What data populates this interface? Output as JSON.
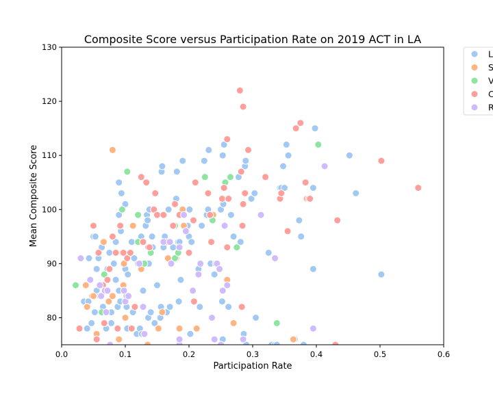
{
  "chart_data": {
    "type": "scatter",
    "title": "Composite Score versus Participation Rate on 2019 ACT in LA",
    "xlabel": "Participation Rate",
    "ylabel": "Mean Composite Score",
    "xlim": [
      0.0,
      0.6
    ],
    "ylim": [
      75,
      130
    ],
    "xticks": [
      "0.0",
      "0.1",
      "0.2",
      "0.3",
      "0.4",
      "0.5",
      "0.6"
    ],
    "yticks": [
      "80",
      "90",
      "100",
      "110",
      "120",
      "130"
    ],
    "grid": false,
    "legend_position": "outside-right",
    "legend_labels_visible": [
      "L",
      "S",
      "V",
      "C",
      "R"
    ],
    "series": [
      {
        "name": "L",
        "color": "#a1c9f4",
        "points": [
          [
            0.035,
            83
          ],
          [
            0.04,
            78
          ],
          [
            0.042,
            83
          ],
          [
            0.043,
            91
          ],
          [
            0.047,
            79
          ],
          [
            0.05,
            95
          ],
          [
            0.052,
            81
          ],
          [
            0.053,
            95
          ],
          [
            0.055,
            89
          ],
          [
            0.055,
            85
          ],
          [
            0.058,
            91
          ],
          [
            0.06,
            84
          ],
          [
            0.063,
            93
          ],
          [
            0.065,
            82
          ],
          [
            0.068,
            85
          ],
          [
            0.07,
            78
          ],
          [
            0.072,
            89
          ],
          [
            0.075,
            92
          ],
          [
            0.078,
            81
          ],
          [
            0.078,
            79
          ],
          [
            0.082,
            90
          ],
          [
            0.085,
            87
          ],
          [
            0.085,
            94
          ],
          [
            0.088,
            82
          ],
          [
            0.09,
            85
          ],
          [
            0.09,
            99
          ],
          [
            0.09,
            105
          ],
          [
            0.092,
            83
          ],
          [
            0.093,
            96
          ],
          [
            0.094,
            103
          ],
          [
            0.096,
            100
          ],
          [
            0.098,
            90
          ],
          [
            0.1,
            101
          ],
          [
            0.1,
            89
          ],
          [
            0.102,
            84
          ],
          [
            0.102,
            82
          ],
          [
            0.103,
            78
          ],
          [
            0.104,
            88
          ],
          [
            0.11,
            94
          ],
          [
            0.112,
            81
          ],
          [
            0.114,
            91
          ],
          [
            0.118,
            77
          ],
          [
            0.12,
            90
          ],
          [
            0.123,
            78
          ],
          [
            0.125,
            95
          ],
          [
            0.126,
            77
          ],
          [
            0.128,
            85
          ],
          [
            0.13,
            90
          ],
          [
            0.132,
            97
          ],
          [
            0.134,
            99
          ],
          [
            0.135,
            98
          ],
          [
            0.136,
            80
          ],
          [
            0.137,
            90
          ],
          [
            0.138,
            100
          ],
          [
            0.14,
            81
          ],
          [
            0.142,
            95
          ],
          [
            0.143,
            93
          ],
          [
            0.146,
            79
          ],
          [
            0.15,
            86
          ],
          [
            0.152,
            99
          ],
          [
            0.155,
            80
          ],
          [
            0.156,
            82
          ],
          [
            0.157,
            107
          ],
          [
            0.158,
            108
          ],
          [
            0.16,
            93
          ],
          [
            0.162,
            95
          ],
          [
            0.165,
            81
          ],
          [
            0.168,
            100
          ],
          [
            0.17,
            82
          ],
          [
            0.175,
            93
          ],
          [
            0.178,
            101
          ],
          [
            0.18,
            102
          ],
          [
            0.181,
            107
          ],
          [
            0.183,
            94
          ],
          [
            0.184,
            83
          ],
          [
            0.185,
            94
          ],
          [
            0.187,
            87
          ],
          [
            0.19,
            109
          ],
          [
            0.193,
            99
          ],
          [
            0.198,
            97
          ],
          [
            0.2,
            95
          ],
          [
            0.201,
            100
          ],
          [
            0.202,
            77
          ],
          [
            0.204,
            94
          ],
          [
            0.208,
            98
          ],
          [
            0.215,
            89
          ],
          [
            0.217,
            82
          ],
          [
            0.22,
            97
          ],
          [
            0.224,
            109
          ],
          [
            0.228,
            99
          ],
          [
            0.23,
            100
          ],
          [
            0.231,
            111
          ],
          [
            0.234,
            90
          ],
          [
            0.236,
            99
          ],
          [
            0.24,
            88
          ],
          [
            0.242,
            90
          ],
          [
            0.245,
            90
          ],
          [
            0.25,
            100
          ],
          [
            0.252,
            83
          ],
          [
            0.253,
            76
          ],
          [
            0.253,
            110
          ],
          [
            0.254,
            101
          ],
          [
            0.255,
            112
          ],
          [
            0.262,
            82
          ],
          [
            0.266,
            99
          ],
          [
            0.27,
            95
          ],
          [
            0.275,
            93
          ],
          [
            0.278,
            106
          ],
          [
            0.281,
            94
          ],
          [
            0.286,
            77
          ],
          [
            0.288,
            108
          ],
          [
            0.289,
            109
          ],
          [
            0.29,
            75
          ],
          [
            0.298,
            102
          ],
          [
            0.303,
            103
          ],
          [
            0.305,
            80
          ],
          [
            0.325,
            92
          ],
          [
            0.33,
            75
          ],
          [
            0.335,
            75
          ],
          [
            0.338,
            75
          ],
          [
            0.343,
            104
          ],
          [
            0.345,
            104
          ],
          [
            0.348,
            108
          ],
          [
            0.35,
            104
          ],
          [
            0.353,
            112
          ],
          [
            0.356,
            110
          ],
          [
            0.366,
            76
          ],
          [
            0.373,
            98
          ],
          [
            0.376,
            95
          ],
          [
            0.38,
            75
          ],
          [
            0.395,
            104
          ],
          [
            0.395,
            89
          ],
          [
            0.398,
            115
          ],
          [
            0.452,
            110
          ],
          [
            0.462,
            103
          ],
          [
            0.502,
            88
          ]
        ]
      },
      {
        "name": "S",
        "color": "#ffb482",
        "points": [
          [
            0.038,
            86
          ],
          [
            0.04,
            82
          ],
          [
            0.048,
            84
          ],
          [
            0.05,
            84
          ],
          [
            0.055,
            77
          ],
          [
            0.066,
            94
          ],
          [
            0.068,
            79
          ],
          [
            0.074,
            83
          ],
          [
            0.076,
            89
          ],
          [
            0.08,
            111
          ],
          [
            0.08,
            84
          ],
          [
            0.09,
            76
          ],
          [
            0.095,
            92
          ],
          [
            0.097,
            86
          ],
          [
            0.098,
            90
          ],
          [
            0.1,
            80
          ],
          [
            0.112,
            97
          ],
          [
            0.125,
            89
          ],
          [
            0.135,
            75
          ],
          [
            0.152,
            78
          ],
          [
            0.158,
            81
          ],
          [
            0.167,
            91
          ],
          [
            0.18,
            91
          ],
          [
            0.185,
            78
          ],
          [
            0.19,
            100
          ],
          [
            0.192,
            97
          ],
          [
            0.212,
            78
          ],
          [
            0.238,
            99
          ],
          [
            0.26,
            87
          ],
          [
            0.27,
            79
          ],
          [
            0.364,
            76
          ]
        ]
      },
      {
        "name": "V",
        "color": "#8de5a1",
        "points": [
          [
            0.022,
            86
          ],
          [
            0.063,
            81
          ],
          [
            0.067,
            88
          ],
          [
            0.095,
            100
          ],
          [
            0.103,
            107
          ],
          [
            0.12,
            94
          ],
          [
            0.12,
            99
          ],
          [
            0.13,
            90
          ],
          [
            0.14,
            92
          ],
          [
            0.178,
            97
          ],
          [
            0.178,
            91
          ],
          [
            0.183,
            92
          ],
          [
            0.225,
            106
          ],
          [
            0.237,
            98
          ],
          [
            0.257,
            105
          ],
          [
            0.265,
            106
          ],
          [
            0.275,
            93
          ],
          [
            0.338,
            79
          ],
          [
            0.403,
            112
          ]
        ]
      },
      {
        "name": "C",
        "color": "#ff9f9b",
        "points": [
          [
            0.028,
            78
          ],
          [
            0.05,
            97
          ],
          [
            0.055,
            76
          ],
          [
            0.058,
            92
          ],
          [
            0.065,
            86
          ],
          [
            0.067,
            79
          ],
          [
            0.072,
            87
          ],
          [
            0.075,
            89
          ],
          [
            0.08,
            95
          ],
          [
            0.085,
            92
          ],
          [
            0.088,
            78
          ],
          [
            0.092,
            97
          ],
          [
            0.097,
            92
          ],
          [
            0.103,
            91
          ],
          [
            0.108,
            92
          ],
          [
            0.11,
            78
          ],
          [
            0.115,
            82
          ],
          [
            0.125,
            106
          ],
          [
            0.128,
            94
          ],
          [
            0.133,
            105
          ],
          [
            0.136,
            93
          ],
          [
            0.138,
            93
          ],
          [
            0.145,
            100
          ],
          [
            0.147,
            103
          ],
          [
            0.15,
            99
          ],
          [
            0.16,
            99
          ],
          [
            0.165,
            94
          ],
          [
            0.175,
            97
          ],
          [
            0.178,
            101
          ],
          [
            0.185,
            99
          ],
          [
            0.2,
            92
          ],
          [
            0.207,
            98
          ],
          [
            0.208,
            83
          ],
          [
            0.21,
            105
          ],
          [
            0.23,
            103
          ],
          [
            0.233,
            99
          ],
          [
            0.235,
            94
          ],
          [
            0.252,
            102
          ],
          [
            0.255,
            104
          ],
          [
            0.26,
            113
          ],
          [
            0.262,
            102
          ],
          [
            0.26,
            93
          ],
          [
            0.28,
            122
          ],
          [
            0.282,
            107
          ],
          [
            0.283,
            82
          ],
          [
            0.284,
            97
          ],
          [
            0.285,
            101
          ],
          [
            0.285,
            119
          ],
          [
            0.288,
            103
          ],
          [
            0.293,
            111
          ],
          [
            0.32,
            106
          ],
          [
            0.343,
            102
          ],
          [
            0.345,
            103
          ],
          [
            0.355,
            96
          ],
          [
            0.368,
            115
          ],
          [
            0.375,
            116
          ],
          [
            0.383,
            105
          ],
          [
            0.385,
            102
          ],
          [
            0.388,
            102
          ],
          [
            0.39,
            102
          ],
          [
            0.43,
            75
          ],
          [
            0.433,
            98
          ],
          [
            0.502,
            109
          ],
          [
            0.56,
            104
          ]
        ]
      },
      {
        "name": "R",
        "color": "#d0bbff",
        "points": [
          [
            0.03,
            91
          ],
          [
            0.045,
            87
          ],
          [
            0.06,
            86
          ],
          [
            0.062,
            84
          ],
          [
            0.068,
            85
          ],
          [
            0.07,
            81
          ],
          [
            0.072,
            85
          ],
          [
            0.076,
            75
          ],
          [
            0.098,
            85
          ],
          [
            0.1,
            83
          ],
          [
            0.105,
            84
          ],
          [
            0.122,
            90
          ],
          [
            0.128,
            82
          ],
          [
            0.13,
            77
          ],
          [
            0.16,
            94
          ],
          [
            0.17,
            94
          ],
          [
            0.172,
            90
          ],
          [
            0.185,
            75
          ],
          [
            0.185,
            76
          ],
          [
            0.185,
            93
          ],
          [
            0.192,
            99
          ],
          [
            0.195,
            96
          ],
          [
            0.206,
            85
          ],
          [
            0.215,
            88
          ],
          [
            0.218,
            90
          ],
          [
            0.236,
            80
          ],
          [
            0.24,
            76
          ],
          [
            0.244,
            90
          ],
          [
            0.248,
            89
          ],
          [
            0.25,
            75
          ],
          [
            0.253,
            85
          ],
          [
            0.256,
            97
          ],
          [
            0.26,
            86
          ],
          [
            0.285,
            76
          ],
          [
            0.313,
            99
          ],
          [
            0.335,
            91
          ],
          [
            0.395,
            78
          ],
          [
            0.413,
            108
          ]
        ]
      }
    ]
  }
}
